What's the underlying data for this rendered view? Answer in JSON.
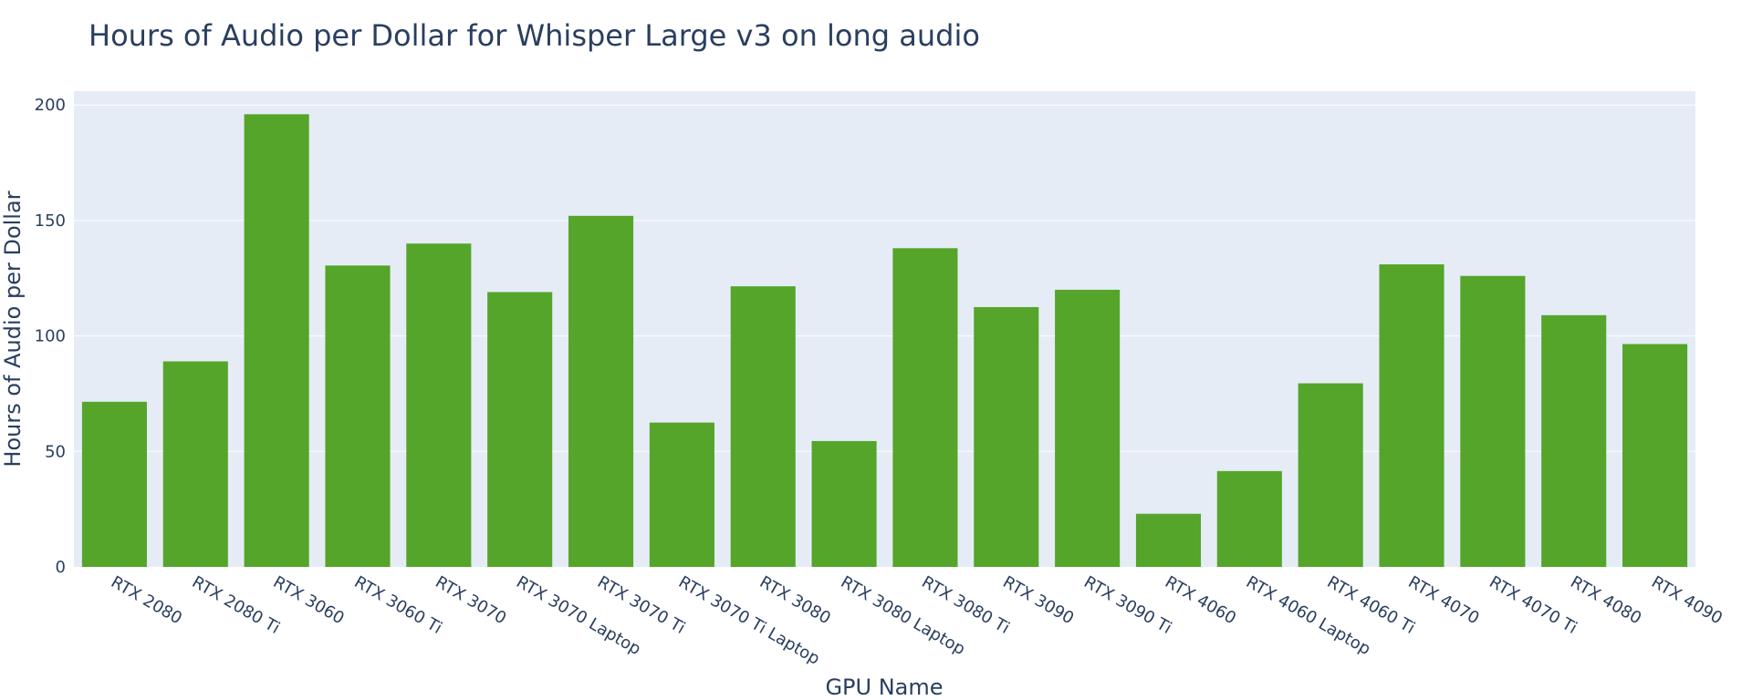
{
  "chart_data": {
    "type": "bar",
    "title": "Hours of Audio per Dollar for Whisper Large v3 on long audio",
    "xlabel": "GPU Name",
    "ylabel": "Hours of Audio per Dollar",
    "ylim": [
      0,
      206
    ],
    "yticks": [
      0,
      50,
      100,
      150,
      200
    ],
    "grid": true,
    "bar_color": "#54a52a",
    "plot_bgcolor": "#e5ecf6",
    "text_color": "#2a3f5f",
    "categories": [
      "RTX 2080",
      "RTX 2080 Ti",
      "RTX 3060",
      "RTX 3060 Ti",
      "RTX 3070",
      "RTX 3070 Laptop",
      "RTX 3070 Ti",
      "RTX 3070 Ti Laptop",
      "RTX 3080",
      "RTX 3080 Laptop",
      "RTX 3080 Ti",
      "RTX 3090",
      "RTX 3090 Ti",
      "RTX 4060",
      "RTX 4060 Laptop",
      "RTX 4060 Ti",
      "RTX 4070",
      "RTX 4070 Ti",
      "RTX 4080",
      "RTX 4090"
    ],
    "values": [
      71.5,
      89,
      196,
      130.5,
      140,
      119,
      152,
      62.5,
      121.5,
      54.5,
      138,
      112.5,
      120,
      23,
      41.5,
      79.5,
      131,
      126,
      109,
      96.5
    ]
  }
}
